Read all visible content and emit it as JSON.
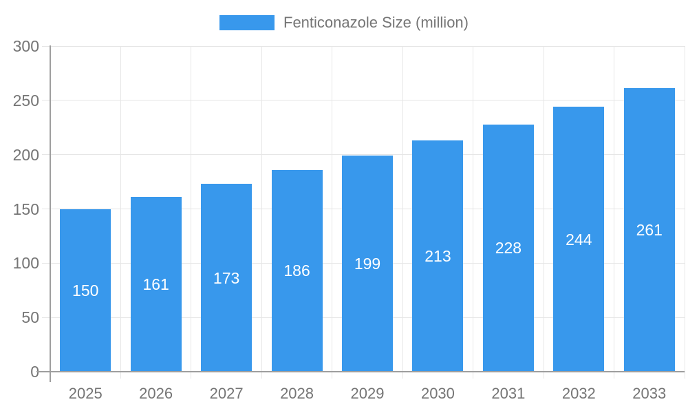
{
  "legend": {
    "label": "Fenticonazole Size (million)"
  },
  "chart_data": {
    "type": "bar",
    "title": "Fenticonazole Size (million)",
    "series_name": "Fenticonazole Size (million)",
    "categories": [
      "2025",
      "2026",
      "2027",
      "2028",
      "2029",
      "2030",
      "2031",
      "2032",
      "2033"
    ],
    "values": [
      150,
      161,
      173,
      186,
      199,
      213,
      228,
      244,
      261
    ],
    "xlabel": "",
    "ylabel": "",
    "ylim": [
      0,
      300
    ],
    "yticks": [
      0,
      50,
      100,
      150,
      200,
      250,
      300
    ],
    "grid": true,
    "legend_position": "top",
    "value_label_position": "inside-center",
    "colors": {
      "bar": "#3898ec",
      "grid": "#e6e6e6",
      "axis": "#9e9e9e",
      "tick_text": "#757575",
      "value_label": "#ffffff",
      "background": "#ffffff"
    }
  }
}
